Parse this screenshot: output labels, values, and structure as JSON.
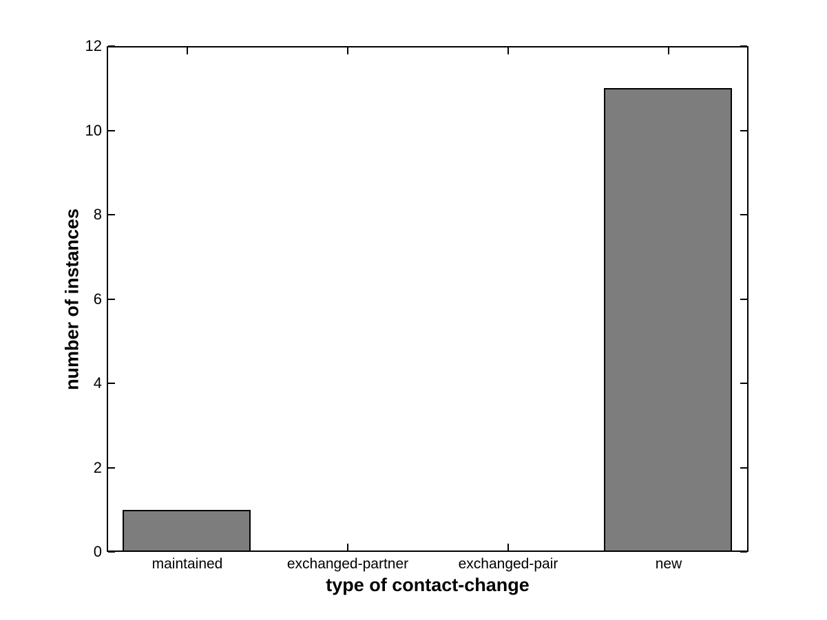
{
  "chart_data": {
    "type": "bar",
    "categories": [
      "maintained",
      "exchanged-partner",
      "exchanged-pair",
      "new"
    ],
    "values": [
      1,
      0,
      0,
      11
    ],
    "xlabel": "type of contact-change",
    "ylabel": "number of instances",
    "ylim": [
      0,
      12
    ],
    "yticks": [
      0,
      2,
      4,
      6,
      8,
      10,
      12
    ],
    "bar_width_fraction": 0.8,
    "bar_fill_color": "#7d7d7d",
    "bar_edge_color": "#000000",
    "axis_color": "#000000",
    "background_color": "#ffffff",
    "grid": "off",
    "legend": "none",
    "tick_direction": "in",
    "box": "on"
  }
}
